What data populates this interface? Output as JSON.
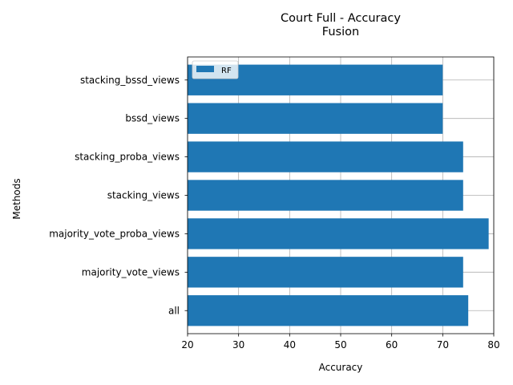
{
  "chart_data": {
    "type": "bar",
    "orientation": "horizontal",
    "title_line1": "Court Full - Accuracy",
    "title_line2": "Fusion",
    "xlabel": "Accuracy",
    "ylabel": "Methods",
    "xlim": [
      20,
      80
    ],
    "xticks": [
      20,
      30,
      40,
      50,
      60,
      70,
      80
    ],
    "grid": true,
    "legend_position": "top-left",
    "bar_color": "#1f77b4",
    "categories": [
      "all",
      "majority_vote_views",
      "majority_vote_proba_views",
      "stacking_views",
      "stacking_proba_views",
      "bssd_views",
      "stacking_bssd_views"
    ],
    "series": [
      {
        "name": "RF",
        "values": [
          75,
          74,
          79,
          74,
          74,
          70,
          70
        ]
      }
    ]
  }
}
